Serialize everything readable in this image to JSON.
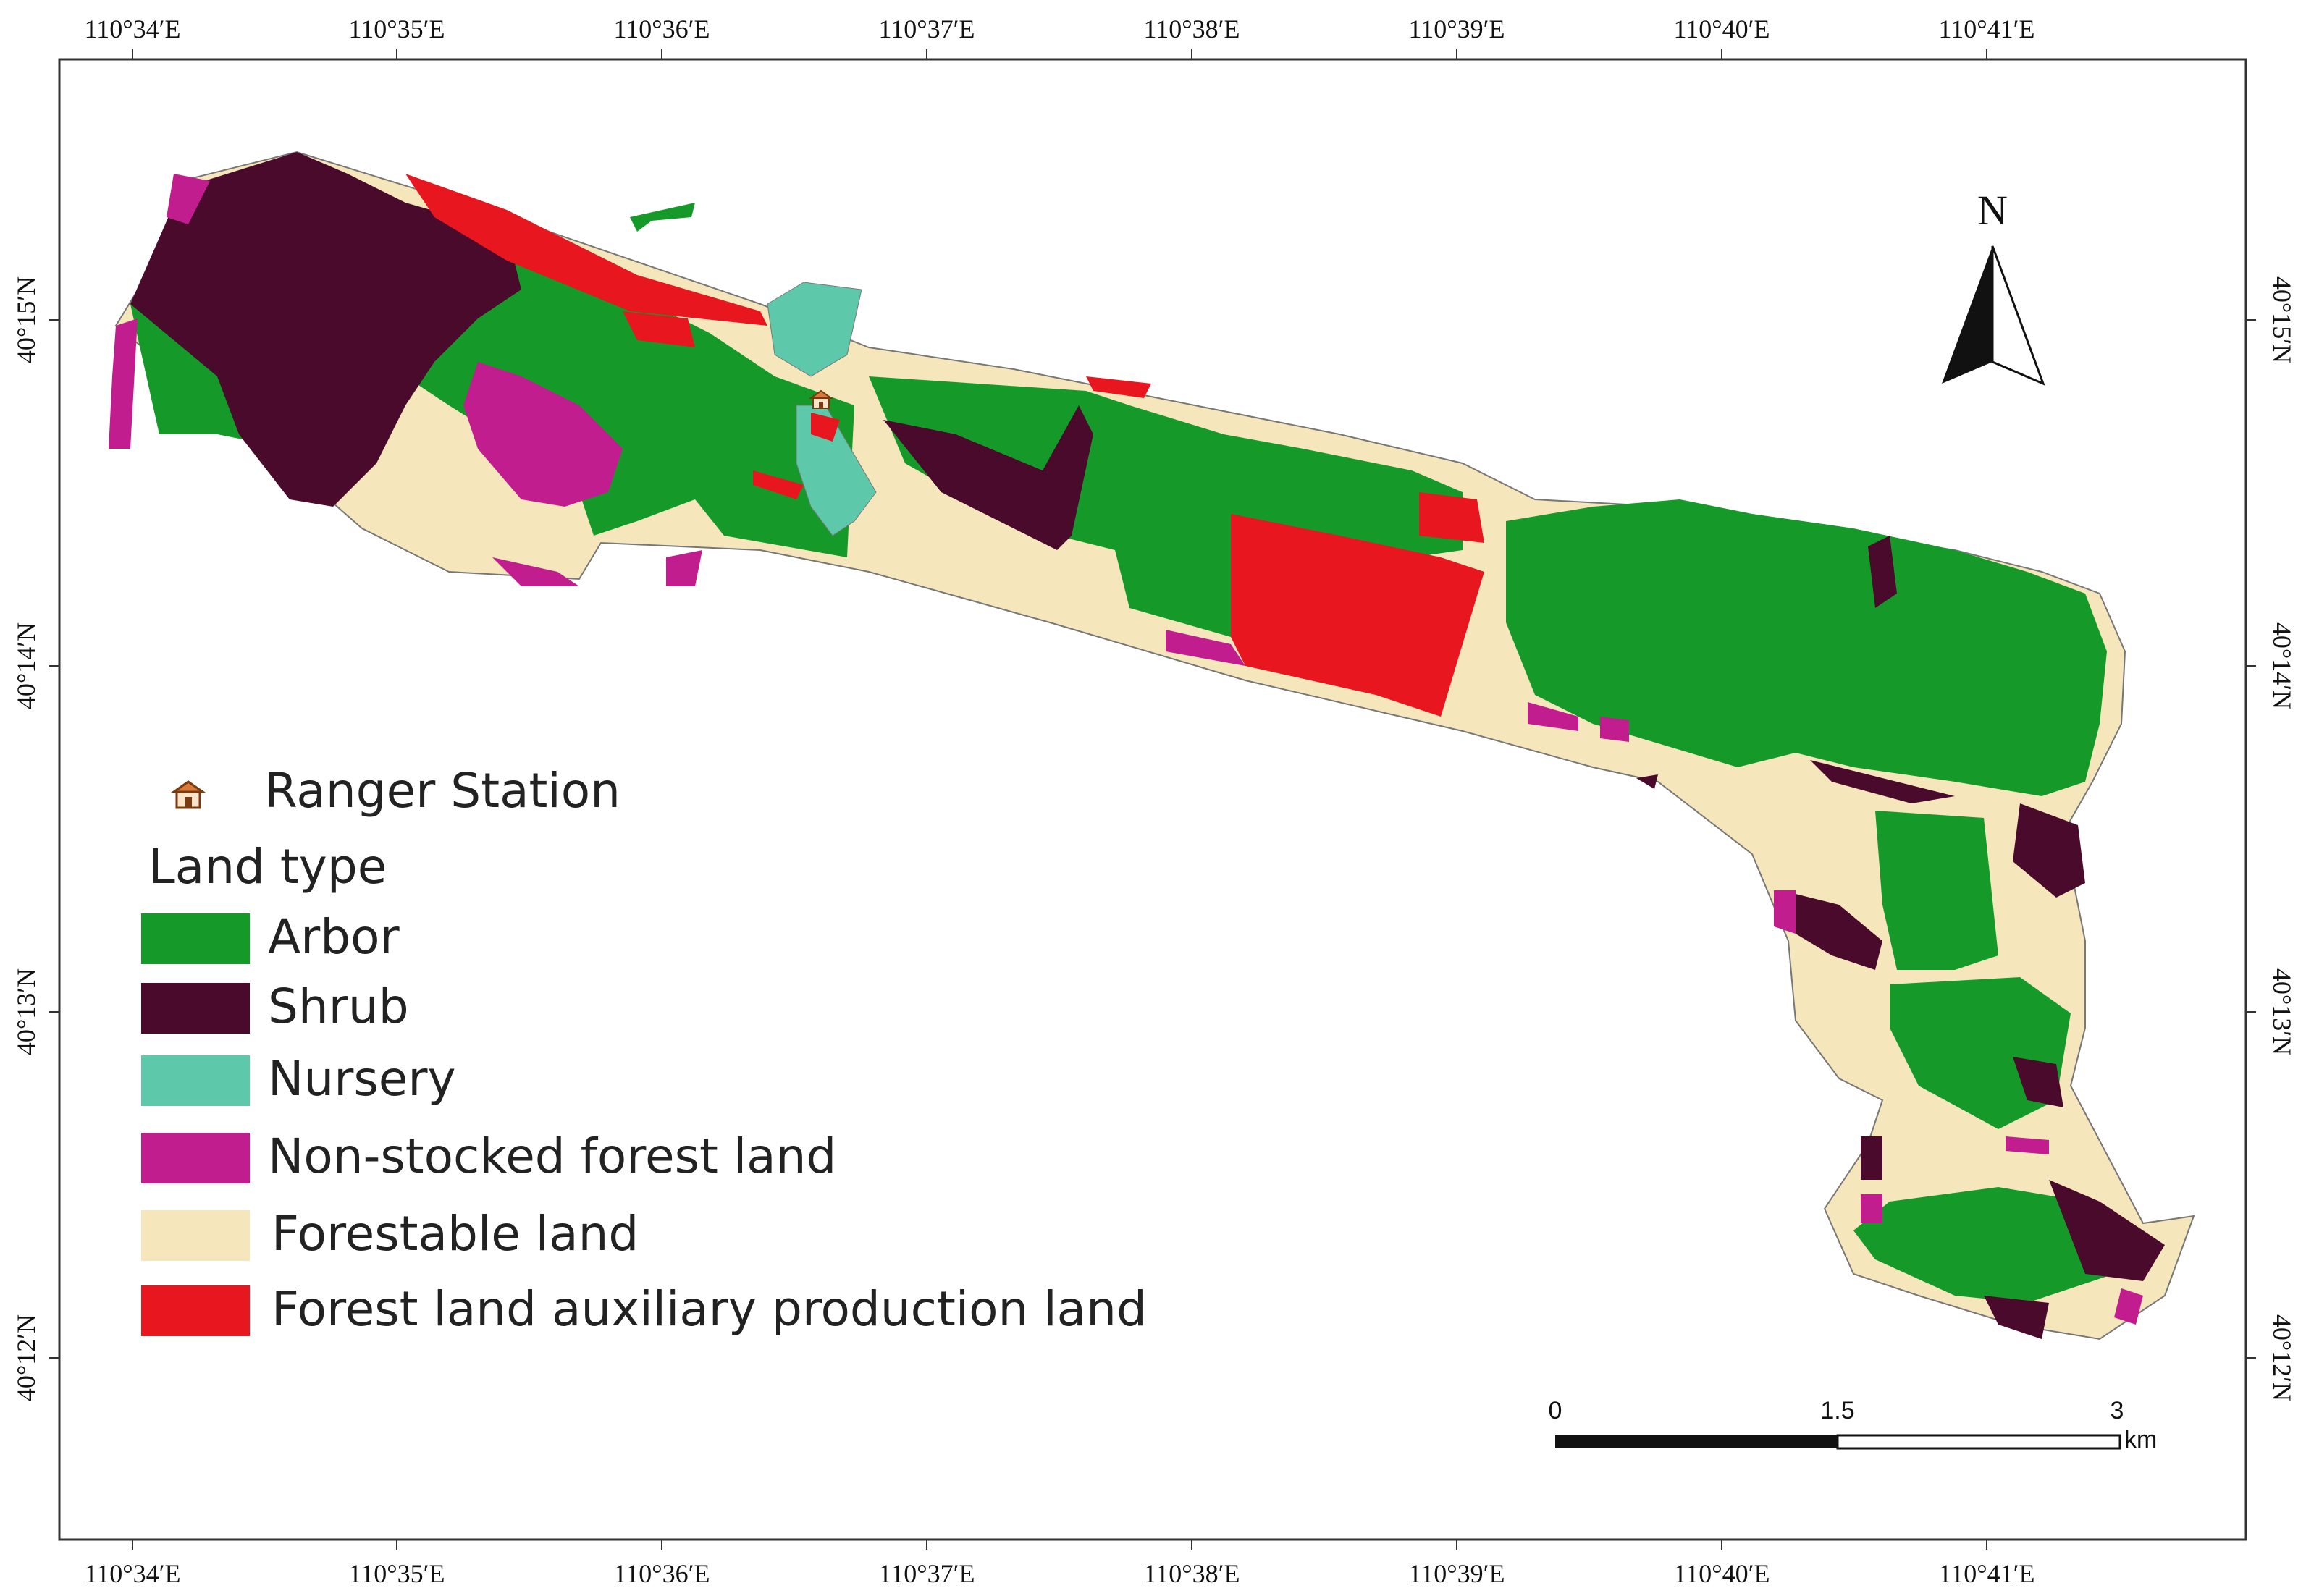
{
  "map": {
    "top_ticks": [
      "110°34′E",
      "110°35′E",
      "110°36′E",
      "110°37′E",
      "110°38′E",
      "110°39′E",
      "110°40′E",
      "110°41′E"
    ],
    "bottom_ticks": [
      "110°34′E",
      "110°35′E",
      "110°36′E",
      "110°37′E",
      "110°38′E",
      "110°39′E",
      "110°40′E",
      "110°41′E"
    ],
    "left_ticks": [
      "40°15′N",
      "40°14′N",
      "40°13′N",
      "40°12′N"
    ],
    "right_ticks": [
      "40°15′N",
      "40°14′N",
      "40°13′N",
      "40°12′N"
    ],
    "north_label": "N"
  },
  "legend": {
    "ranger_station": "Ranger Station",
    "title": "Land type",
    "items": [
      {
        "label": "Arbor",
        "color": "#159a2a"
      },
      {
        "label": "Shrub",
        "color": "#4a0a2c"
      },
      {
        "label": "Nursery",
        "color": "#5ec9aa"
      },
      {
        "label": "Non-stocked forest land",
        "color": "#c21d8f"
      },
      {
        "label": "Forestable land",
        "color": "#f6e6bc"
      },
      {
        "label": "Forest land auxiliary production land",
        "color": "#e8161e"
      }
    ]
  },
  "scale_bar": {
    "labels": [
      "0",
      "1.5",
      "3"
    ],
    "unit": "km"
  }
}
